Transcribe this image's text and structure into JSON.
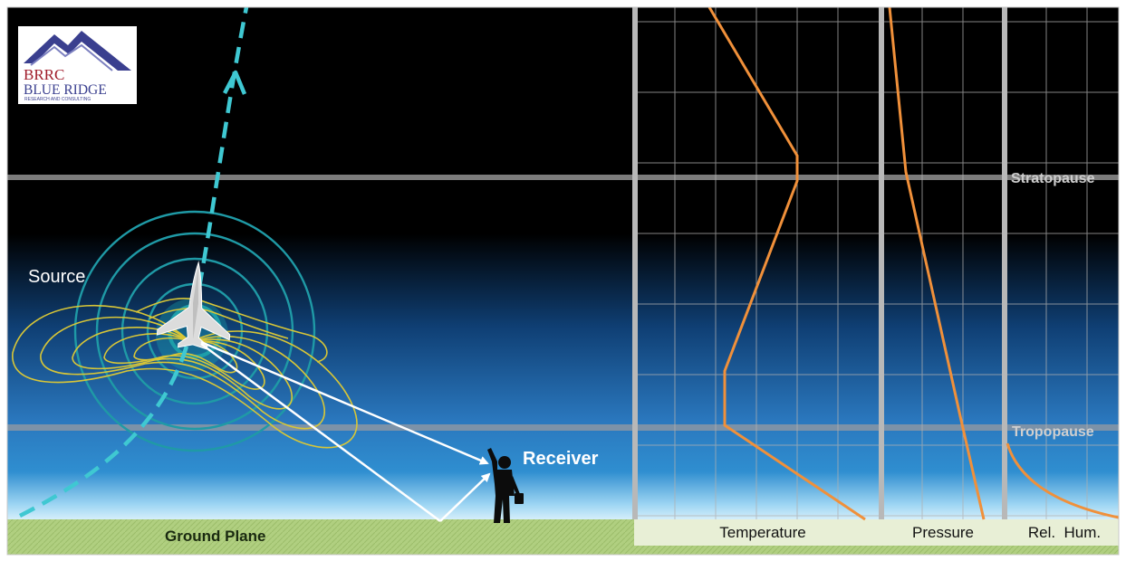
{
  "logo": {
    "acronym": "BRRC",
    "name": "BLUE RIDGE",
    "tagline": "RESEARCH AND CONSULTING",
    "mountain_color": "#3a3f8f",
    "text_color": "#a01d2b"
  },
  "labels": {
    "source": "Source",
    "receiver": "Receiver",
    "ground_plane": "Ground Plane",
    "stratopause": "Stratopause",
    "tropopause": "Tropopause"
  },
  "profile_panels": [
    {
      "label": "Temperature"
    },
    {
      "label": "Pressure"
    },
    {
      "label": "Rel.  Hum."
    }
  ],
  "colors": {
    "sky_top": "#000000",
    "sky_bottom": "#1a6cb8",
    "horizon_glow": "#cfeaf8",
    "ground": "#a9c97a",
    "trajectory": "#3fc8d2",
    "wave_rings": "#1f9aa6",
    "contours": "#d8c637",
    "rays": "#ffffff",
    "profile_curve": "#f0903a",
    "grid": "#9a9a9a",
    "layer_line": "#8a8a8a"
  },
  "icons": {
    "aircraft": "supersonic-jet-icon",
    "person": "person-pointing-icon"
  }
}
